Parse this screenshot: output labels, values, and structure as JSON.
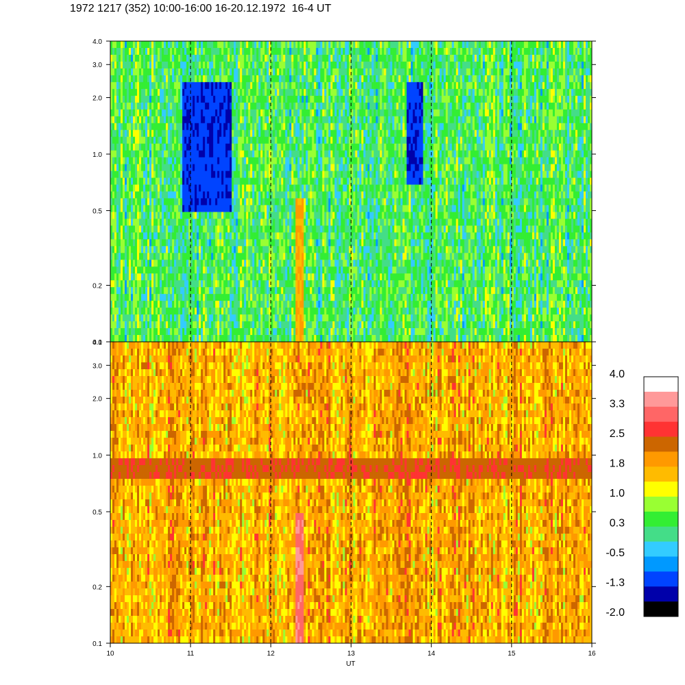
{
  "title": "1972 1217 (352) 10:00-16:00 16-20.12.1972  16-4 UT",
  "chart_data": {
    "type": "heatmap",
    "xlabel": "UT",
    "x_ticks": [
      10,
      11,
      12,
      13,
      14,
      15,
      16
    ],
    "xlim": [
      10,
      16
    ],
    "y_scale": "log",
    "ylim": [
      0.1,
      4.0
    ],
    "y_ticks": [
      "4.0",
      "3.0",
      "2.0",
      "1.0",
      "0.5",
      "0.2",
      "0.1"
    ],
    "y_tick_values": [
      4.0,
      3.0,
      2.0,
      1.0,
      0.5,
      0.2,
      0.1
    ],
    "dashed_gridlines_at_x": [
      11,
      12,
      13,
      14,
      15
    ],
    "panels": [
      {
        "name": "upper",
        "dominant_level": 0.3,
        "features": [
          {
            "x_range": [
              10.9,
              11.5
            ],
            "y_range": [
              0.5,
              2.5
            ],
            "level": -1.3
          },
          {
            "x_range": [
              13.7,
              13.9
            ],
            "y_range": [
              0.7,
              2.5
            ],
            "level": -1.3
          },
          {
            "x_range": [
              12.3,
              12.4
            ],
            "y_range": [
              0.1,
              0.6
            ],
            "level": 1.8
          }
        ]
      },
      {
        "name": "lower",
        "dominant_level": 1.8,
        "features": [
          {
            "x_range": [
              10,
              16
            ],
            "y_range": [
              0.75,
              0.95
            ],
            "level": 2.5
          },
          {
            "x_range": [
              12.3,
              12.4
            ],
            "y_range": [
              0.1,
              0.5
            ],
            "level": 3.3
          }
        ]
      }
    ],
    "colorbar": {
      "labels": [
        "4.0",
        "3.3",
        "2.5",
        "1.8",
        "1.0",
        "0.3",
        "-0.5",
        "-1.3",
        "-2.0"
      ],
      "colors": [
        "#ffffff",
        "#ff9999",
        "#ff6666",
        "#ff3333",
        "#cc6600",
        "#ff9900",
        "#ffbb00",
        "#ffff00",
        "#99ff33",
        "#33ee33",
        "#44dd88",
        "#33ccff",
        "#0099ff",
        "#0044ff",
        "#0000aa",
        "#000000"
      ]
    }
  }
}
